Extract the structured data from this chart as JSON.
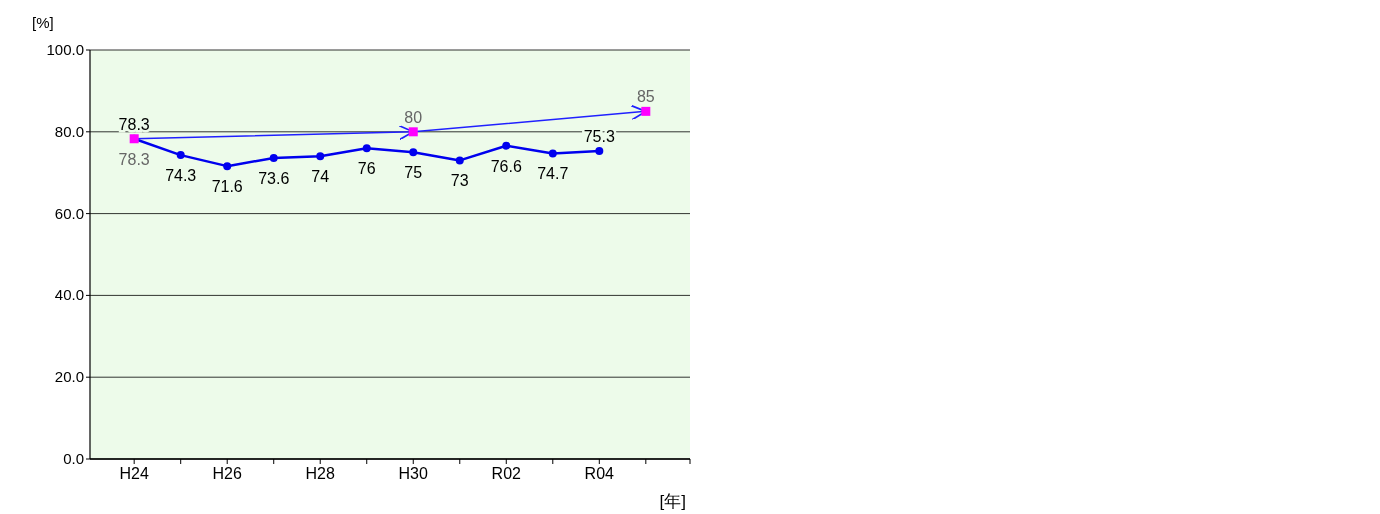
{
  "chart_data": {
    "type": "line",
    "ylabel": "[%]",
    "xlabel": "[年]",
    "categories": [
      "H24",
      null,
      "H26",
      null,
      "H28",
      null,
      "H30",
      null,
      "R02",
      null,
      "R04",
      null
    ],
    "series": [
      {
        "color": "#0000ee",
        "marker": "circle",
        "values": [
          78.3,
          74.3,
          71.6,
          73.6,
          74,
          76,
          75,
          73,
          76.6,
          74.7,
          75.3,
          null
        ]
      },
      {
        "type": "line",
        "color": "#2020ff",
        "marker": "square",
        "colors": [
          "#ff00ff",
          null,
          null,
          null,
          null,
          null,
          "#ff00ff",
          null,
          null,
          null,
          null,
          "#ff00ff"
        ],
        "values": [
          78.3,
          null,
          null,
          null,
          null,
          null,
          80,
          null,
          null,
          null,
          null,
          85
        ]
      }
    ],
    "ylim": [
      0,
      100
    ],
    "yticks": [
      {
        "value": 0,
        "label": "0.0"
      },
      {
        "value": 20,
        "label": "20.0"
      },
      {
        "value": 40,
        "label": "40.0"
      },
      {
        "value": 60,
        "label": "60.0"
      },
      {
        "value": 80,
        "label": "80.0"
      },
      {
        "value": 100,
        "label": "100.0"
      }
    ],
    "grid": "y",
    "data_labels": true
  }
}
